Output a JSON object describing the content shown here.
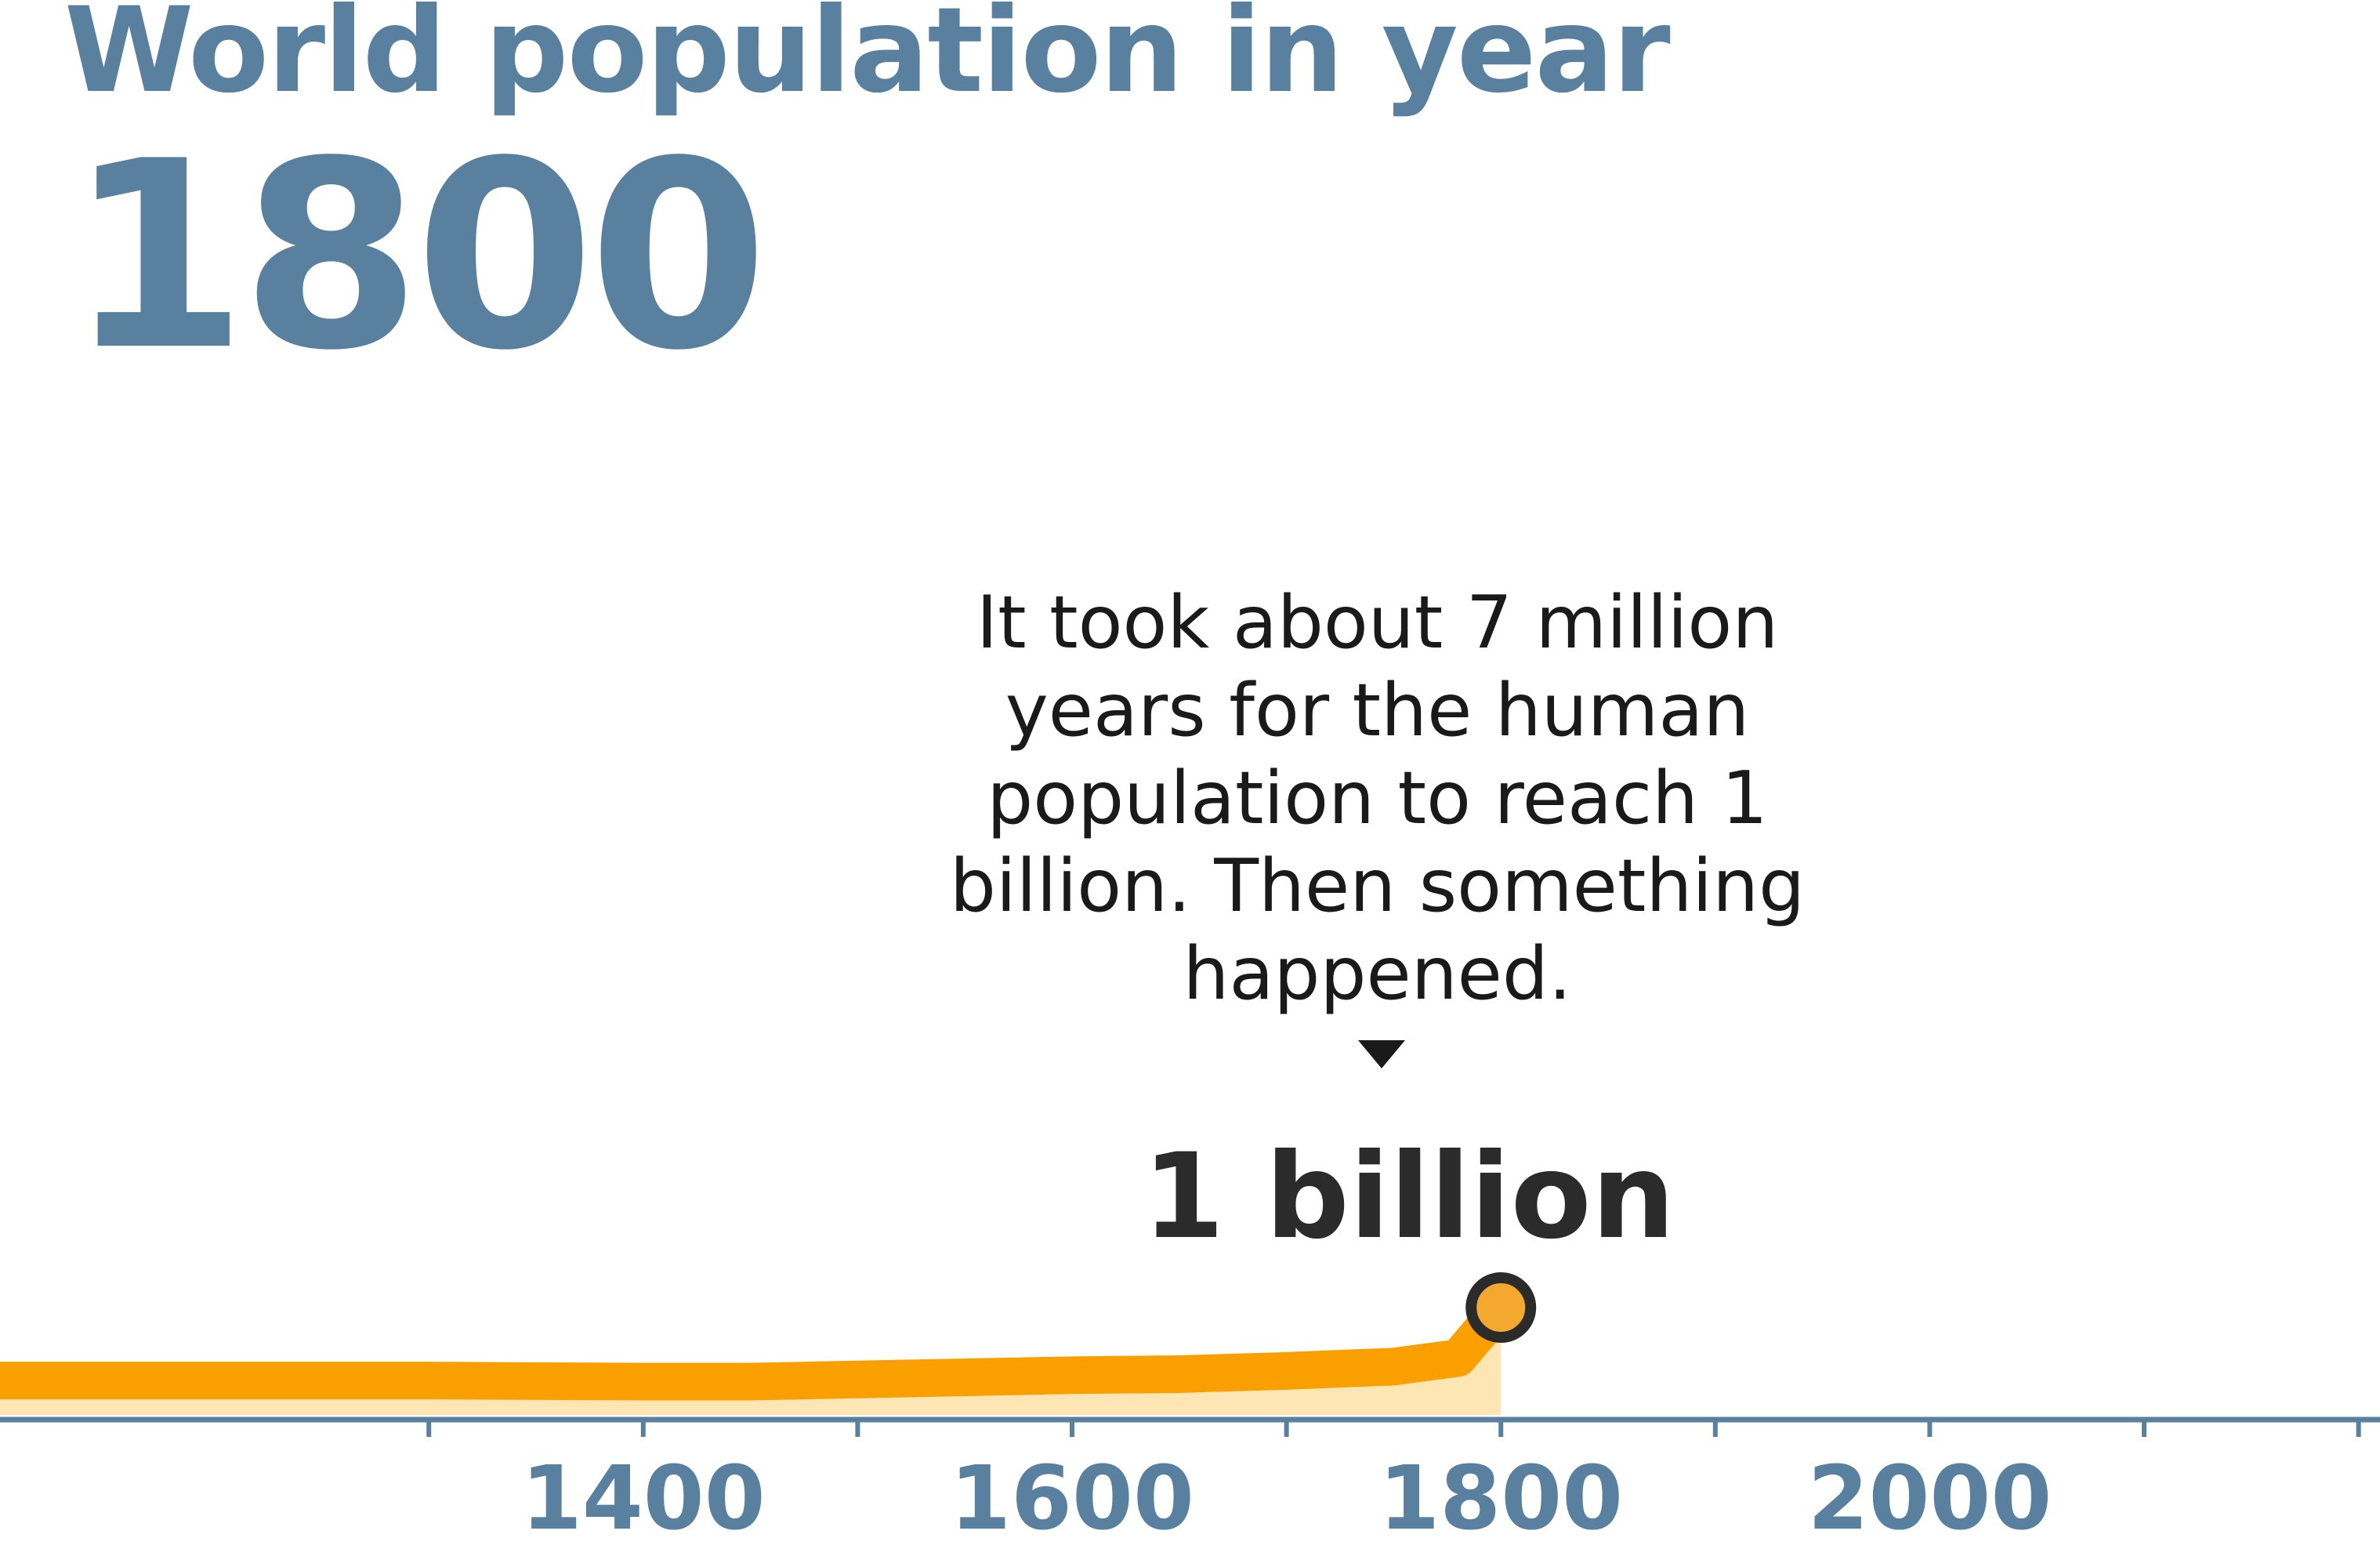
{
  "header": {
    "title": "World population in year",
    "year": "1800"
  },
  "annotation": {
    "text": "It took about 7 million years for the human population to reach 1 billion. Then something happened.",
    "milestone": "1 billion"
  },
  "colors": {
    "accent": "#5a80a0",
    "line": "#f9a000",
    "area": "#fde5b4",
    "marker_fill": "#f4a82e",
    "marker_stroke": "#2b2b2b",
    "axis": "#5a80a0",
    "text": "#1a1a1a"
  },
  "chart_data": {
    "type": "area",
    "title": "",
    "xlabel": "",
    "ylabel": "",
    "xlim": [
      1100,
      2210
    ],
    "ylim": [
      0,
      1.0
    ],
    "tick_labels": [
      "1400",
      "1600",
      "1800",
      "2000"
    ],
    "tick_label_values": [
      1400,
      1600,
      1800,
      2000
    ],
    "minor_ticks": [
      1300,
      1400,
      1500,
      1600,
      1700,
      1800,
      1900,
      2000,
      2100,
      2200
    ],
    "series": [
      {
        "unit": "billion",
        "x": [
          1100,
          1250,
          1300,
          1400,
          1450,
          1500,
          1600,
          1650,
          1700,
          1750,
          1780,
          1800
        ],
        "y": [
          0.32,
          0.32,
          0.32,
          0.31,
          0.31,
          0.33,
          0.37,
          0.38,
          0.41,
          0.45,
          0.53,
          1.0
        ]
      }
    ],
    "highlight": {
      "x": 1800,
      "y": 1.0,
      "label": "1 billion"
    },
    "grid": false,
    "legend": "none"
  }
}
